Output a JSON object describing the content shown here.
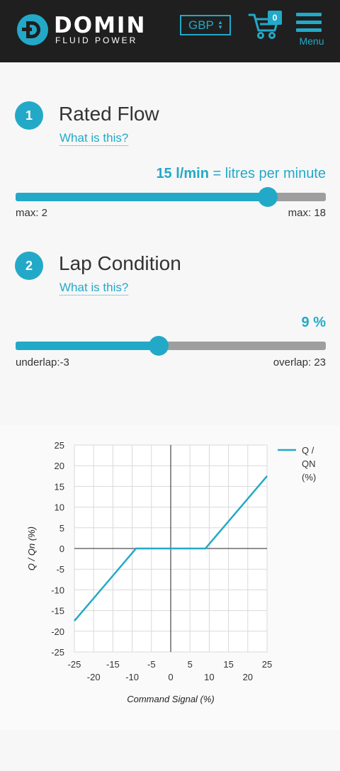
{
  "header": {
    "logo_word": "DOMIN",
    "logo_sub": "FLUID POWER",
    "currency": "GBP",
    "cart_count": "0",
    "menu_label": "Menu",
    "icons": [
      "logo-icon",
      "cart-icon",
      "menu-icon",
      "sort-arrows-icon"
    ],
    "colors": {
      "accent": "#23a9c8",
      "header_bg": "#1f1f1f"
    }
  },
  "rated_flow": {
    "step": "1",
    "title": "Rated Flow",
    "help": "What is this?",
    "value_bold": "15 l/min",
    "value_rest": " = litres per minute",
    "min_label": "max: 2",
    "max_label": "max: 18",
    "min": 2,
    "max": 18,
    "value": 15
  },
  "lap_condition": {
    "step": "2",
    "title": "Lap Condition",
    "help": "What is this?",
    "value_text": "9 %",
    "min_label": "underlap:-3",
    "max_label": "overlap: 23",
    "min": -3,
    "max": 23,
    "value": 9
  },
  "chart_data": {
    "type": "line",
    "title": "",
    "xlabel": "Command Signal (%)",
    "ylabel": "Q / Qn (%)",
    "xlim": [
      -25,
      25
    ],
    "ylim": [
      -25,
      25
    ],
    "x_ticks_upper": [
      "-25",
      "-15",
      "-5",
      "5",
      "15",
      "25"
    ],
    "x_ticks_lower": [
      "-20",
      "-10",
      "0",
      "10",
      "20"
    ],
    "y_ticks": [
      "25",
      "20",
      "15",
      "10",
      "5",
      "0",
      "-5",
      "-10",
      "-15",
      "-20",
      "-25"
    ],
    "grid": true,
    "legend_position": "top-right",
    "series": [
      {
        "name": "Q / QN (%)",
        "legend_lines": [
          "Q /",
          "QN",
          "(%)"
        ],
        "color": "#23a9c8",
        "x": [
          -25,
          -9,
          9,
          25
        ],
        "y": [
          -17.5,
          0,
          0,
          17.5
        ]
      }
    ]
  }
}
